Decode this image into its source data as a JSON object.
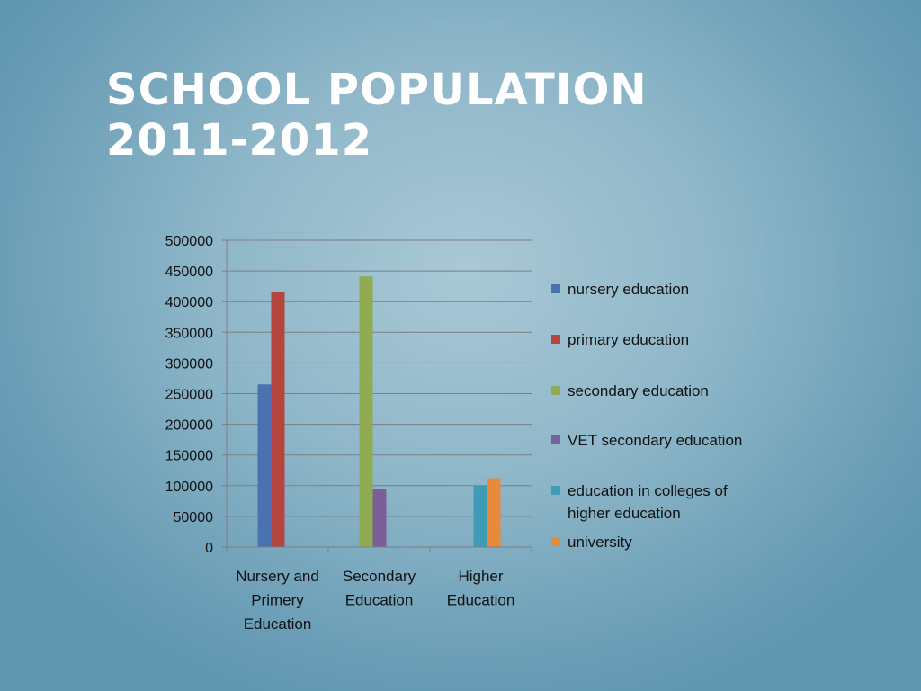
{
  "slide": {
    "title_line1": "SCHOOL POPULATION",
    "title_line2": "2011-2012"
  },
  "chart_data": {
    "type": "bar",
    "categories": [
      [
        "Nursery and",
        "Primery",
        "Education"
      ],
      [
        "Secondary",
        "Education"
      ],
      [
        "Higher",
        "Education"
      ]
    ],
    "ylim": [
      0,
      500000
    ],
    "yticks": [
      0,
      50000,
      100000,
      150000,
      200000,
      250000,
      300000,
      350000,
      400000,
      450000,
      500000
    ],
    "grid": true,
    "legend_position": "right",
    "series": [
      {
        "name": "nursery education",
        "color": "#4a72b0",
        "values": [
          265000,
          null,
          null
        ]
      },
      {
        "name": "primary education",
        "color": "#b5463f",
        "values": [
          416000,
          null,
          null
        ]
      },
      {
        "name": "secondary education",
        "color": "#8fac52",
        "values": [
          null,
          441000,
          null
        ]
      },
      {
        "name": "VET secondary education",
        "color": "#7a5f99",
        "values": [
          null,
          95000,
          null
        ]
      },
      {
        "name": [
          "education in colleges of",
          "higher education"
        ],
        "color": "#3f9bb6",
        "values": [
          null,
          null,
          100000
        ]
      },
      {
        "name": "university",
        "color": "#e88a3c",
        "values": [
          null,
          null,
          112000
        ]
      }
    ]
  }
}
